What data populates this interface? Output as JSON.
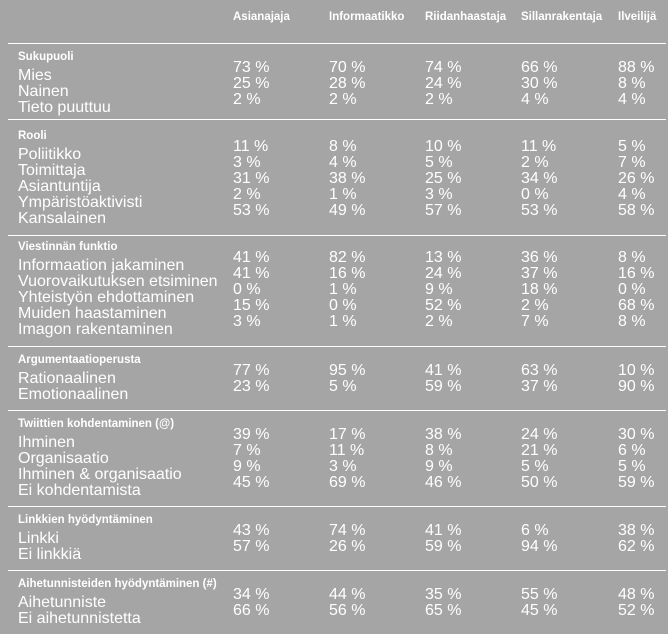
{
  "columns": [
    "Asianajaja",
    "Informaatikko",
    "Riidanhaastaja",
    "Sillanrakentaja",
    "Ilveilijä"
  ],
  "sections": [
    {
      "title": "Sukupuoli",
      "rows": [
        {
          "label": "Mies",
          "values": [
            "73 %",
            "70 %",
            "74 %",
            "66 %",
            "88 %"
          ]
        },
        {
          "label": "Nainen",
          "values": [
            "25 %",
            "28 %",
            "24 %",
            "30 %",
            "8 %"
          ]
        },
        {
          "label": "Tieto puuttuu",
          "values": [
            "2 %",
            "2 %",
            "2 %",
            "4 %",
            "4 %"
          ]
        }
      ]
    },
    {
      "title": "Rooli",
      "rows": [
        {
          "label": "Poliitikko",
          "values": [
            "11 %",
            "8 %",
            "10 %",
            "11 %",
            "5 %"
          ]
        },
        {
          "label": "Toimittaja",
          "values": [
            "3 %",
            "4 %",
            "5 %",
            "2 %",
            "7 %"
          ]
        },
        {
          "label": "Asiantuntija",
          "values": [
            "31 %",
            "38 %",
            "25 %",
            "34 %",
            "26 %"
          ]
        },
        {
          "label": "Ympäristöaktivisti",
          "values": [
            "2 %",
            "1 %",
            "3 %",
            "0 %",
            "4 %"
          ]
        },
        {
          "label": "Kansalainen",
          "values": [
            "53 %",
            "49 %",
            "57 %",
            "53 %",
            "58 %"
          ]
        }
      ]
    },
    {
      "title": "Viestinnän funktio",
      "rows": [
        {
          "label": "Informaation jakaminen",
          "values": [
            "41 %",
            "82 %",
            "13 %",
            "36 %",
            "8 %"
          ]
        },
        {
          "label": "Vuorovaikutuksen etsiminen",
          "values": [
            "41 %",
            "16 %",
            "24 %",
            "37 %",
            "16 %"
          ]
        },
        {
          "label": "Yhteistyön ehdottaminen",
          "values": [
            "0 %",
            "1 %",
            "9 %",
            "18 %",
            "0 %"
          ]
        },
        {
          "label": "Muiden haastaminen",
          "values": [
            "15 %",
            "0 %",
            "52 %",
            "2 %",
            "68 %"
          ]
        },
        {
          "label": "Imagon rakentaminen",
          "values": [
            "3 %",
            "1 %",
            "2 %",
            "7 %",
            "8 %"
          ]
        }
      ]
    },
    {
      "title": "Argumentaatioperusta",
      "rows": [
        {
          "label": "Rationaalinen",
          "values": [
            "77 %",
            "95 %",
            "41 %",
            "63 %",
            "10 %"
          ]
        },
        {
          "label": "Emotionaalinen",
          "values": [
            "23 %",
            "5 %",
            "59 %",
            "37 %",
            "90 %"
          ]
        }
      ]
    },
    {
      "title": "Twiittien kohdentaminen (@)",
      "rows": [
        {
          "label": "Ihminen",
          "values": [
            "39 %",
            "17 %",
            "38 %",
            "24 %",
            "30 %"
          ]
        },
        {
          "label": "Organisaatio",
          "values": [
            "7 %",
            "11 %",
            "8 %",
            "21 %",
            "6 %"
          ]
        },
        {
          "label": "Ihminen & organisaatio",
          "values": [
            "9 %",
            "3 %",
            "9 %",
            "5 %",
            "5 %"
          ]
        },
        {
          "label": "Ei kohdentamista",
          "values": [
            "45 %",
            "69 %",
            "46 %",
            "50 %",
            "59 %"
          ]
        }
      ]
    },
    {
      "title": "Linkkien hyödyntäminen",
      "rows": [
        {
          "label": "Linkki",
          "values": [
            "43 %",
            "74 %",
            "41 %",
            "6 %",
            "38 %"
          ]
        },
        {
          "label": "Ei linkkiä",
          "values": [
            "57 %",
            "26 %",
            "59 %",
            "94 %",
            "62 %"
          ]
        }
      ]
    },
    {
      "title": "Aihetunnisteiden hyödyntäminen (#)",
      "rows": [
        {
          "label": "Aihetunniste",
          "values": [
            "34 %",
            "44 %",
            "35 %",
            "55 %",
            "48 %"
          ]
        },
        {
          "label": "Ei aihetunnistetta",
          "values": [
            "66 %",
            "56 %",
            "65 %",
            "45 %",
            "52 %"
          ]
        }
      ]
    }
  ]
}
